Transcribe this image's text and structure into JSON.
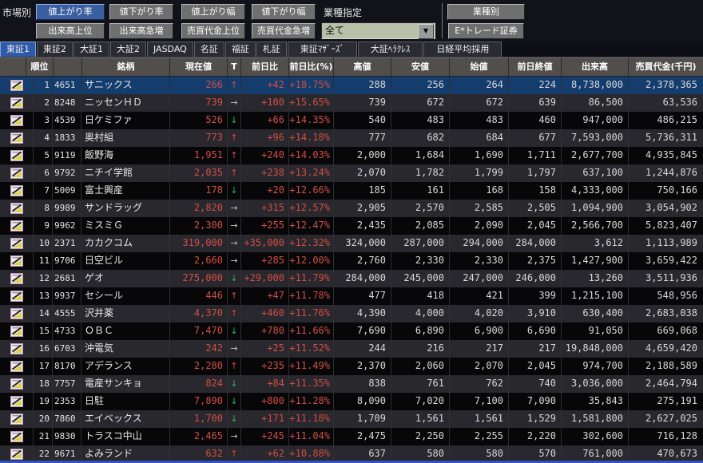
{
  "toolbar": {
    "market_label": "市場別",
    "rank_buttons": [
      "値上がり率",
      "値下がり率",
      "値上がり幅",
      "値下がり幅"
    ],
    "selected_rank_button": "値上がり率",
    "volume_buttons": [
      "出来高上位",
      "出来高急増",
      "売買代金上位",
      "売買代金急増"
    ],
    "industry_label": "業種指定",
    "industry_select_value": "全て",
    "industry_button": "業種別",
    "broker_button": "E*トレード証券",
    "dropdown_arrow_glyph": "▼"
  },
  "tabs": {
    "items": [
      "東証1",
      "東証2",
      "大証1",
      "大証2",
      "JASDAQ",
      "名証",
      "福証",
      "札証",
      "東証ﾏｻﾞｰｽﾞ",
      "大証ﾍﾗｸﾚｽ",
      "日経平均採用"
    ],
    "selected": "東証1"
  },
  "colors": {
    "selected_row": "#143d6d",
    "selected_button": "#3a5fa0",
    "price_red": "#d24e44",
    "arrow_up": "#e8423a",
    "arrow_down": "#2eb94e",
    "arrow_flat": "#c2c2c2",
    "bottom_border_blue": "#3353c4"
  },
  "table": {
    "headers": [
      "",
      "順位",
      "",
      "銘柄",
      "現在値",
      "T",
      "前日比",
      "前日比(%)",
      "高値",
      "安値",
      "始値",
      "前日終値",
      "出来高",
      "売買代金(千円)"
    ],
    "trend_glyphs": {
      "up": "↑",
      "down": "↓",
      "flat": "→"
    },
    "rows": [
      {
        "rank": 1,
        "code": "4651",
        "name": "サニックス",
        "price": "266",
        "trend": "up",
        "change": "+42",
        "pct": "+18.75%",
        "high": "288",
        "low": "256",
        "open": "264",
        "prev_close": "224",
        "volume": "8,738,000",
        "value": "2,378,365",
        "selected": true
      },
      {
        "rank": 2,
        "code": "8248",
        "name": "ニッセンＨＤ",
        "price": "739",
        "trend": "flat",
        "change": "+100",
        "pct": "+15.65%",
        "high": "739",
        "low": "672",
        "open": "672",
        "prev_close": "639",
        "volume": "86,500",
        "value": "63,536"
      },
      {
        "rank": 3,
        "code": "4539",
        "name": "日ケミファ",
        "price": "526",
        "trend": "down",
        "change": "+66",
        "pct": "+14.35%",
        "high": "540",
        "low": "483",
        "open": "483",
        "prev_close": "460",
        "volume": "947,000",
        "value": "486,215"
      },
      {
        "rank": 4,
        "code": "1833",
        "name": "奥村組",
        "price": "773",
        "trend": "up",
        "change": "+96",
        "pct": "+14.18%",
        "high": "777",
        "low": "682",
        "open": "684",
        "prev_close": "677",
        "volume": "7,593,000",
        "value": "5,736,311"
      },
      {
        "rank": 5,
        "code": "9119",
        "name": "飯野海",
        "price": "1,951",
        "trend": "up",
        "change": "+240",
        "pct": "+14.03%",
        "high": "2,000",
        "low": "1,684",
        "open": "1,690",
        "prev_close": "1,711",
        "volume": "2,677,700",
        "value": "4,935,845"
      },
      {
        "rank": 6,
        "code": "9792",
        "name": "ニチイ学館",
        "price": "2,035",
        "trend": "up",
        "change": "+238",
        "pct": "+13.24%",
        "high": "2,070",
        "low": "1,782",
        "open": "1,799",
        "prev_close": "1,797",
        "volume": "637,100",
        "value": "1,244,876"
      },
      {
        "rank": 7,
        "code": "5009",
        "name": "富士興産",
        "price": "178",
        "trend": "down",
        "change": "+20",
        "pct": "+12.66%",
        "high": "185",
        "low": "161",
        "open": "168",
        "prev_close": "158",
        "volume": "4,333,000",
        "value": "750,166"
      },
      {
        "rank": 8,
        "code": "9989",
        "name": "サンドラッグ",
        "price": "2,820",
        "trend": "flat",
        "change": "+315",
        "pct": "+12.57%",
        "high": "2,905",
        "low": "2,570",
        "open": "2,585",
        "prev_close": "2,505",
        "volume": "1,094,900",
        "value": "3,054,902"
      },
      {
        "rank": 9,
        "code": "9962",
        "name": "ミスミＧ",
        "price": "2,300",
        "trend": "flat",
        "change": "+255",
        "pct": "+12.47%",
        "high": "2,435",
        "low": "2,085",
        "open": "2,090",
        "prev_close": "2,045",
        "volume": "2,566,700",
        "value": "5,823,407"
      },
      {
        "rank": 10,
        "code": "2371",
        "name": "カカクコム",
        "price": "319,000",
        "trend": "flat",
        "change": "+35,000",
        "pct": "+12.32%",
        "high": "324,000",
        "low": "287,000",
        "open": "294,000",
        "prev_close": "284,000",
        "volume": "3,612",
        "value": "1,113,989"
      },
      {
        "rank": 11,
        "code": "9706",
        "name": "日空ビル",
        "price": "2,660",
        "trend": "flat",
        "change": "+285",
        "pct": "+12.00%",
        "high": "2,760",
        "low": "2,330",
        "open": "2,330",
        "prev_close": "2,375",
        "volume": "1,427,900",
        "value": "3,659,422"
      },
      {
        "rank": 12,
        "code": "2681",
        "name": "ゲオ",
        "price": "275,000",
        "trend": "down",
        "change": "+29,000",
        "pct": "+11.79%",
        "high": "284,000",
        "low": "245,000",
        "open": "247,000",
        "prev_close": "246,000",
        "volume": "13,260",
        "value": "3,511,936"
      },
      {
        "rank": 13,
        "code": "9937",
        "name": "セシール",
        "price": "446",
        "trend": "up",
        "change": "+47",
        "pct": "+11.78%",
        "high": "477",
        "low": "418",
        "open": "421",
        "prev_close": "399",
        "volume": "1,215,100",
        "value": "548,956"
      },
      {
        "rank": 14,
        "code": "4555",
        "name": "沢井薬",
        "price": "4,370",
        "trend": "up",
        "change": "+460",
        "pct": "+11.76%",
        "high": "4,390",
        "low": "4,000",
        "open": "4,020",
        "prev_close": "3,910",
        "volume": "630,400",
        "value": "2,683,038"
      },
      {
        "rank": 15,
        "code": "4733",
        "name": "ＯＢＣ",
        "price": "7,470",
        "trend": "down",
        "change": "+780",
        "pct": "+11.66%",
        "high": "7,690",
        "low": "6,890",
        "open": "6,900",
        "prev_close": "6,690",
        "volume": "91,050",
        "value": "669,068"
      },
      {
        "rank": 16,
        "code": "6703",
        "name": "沖電気",
        "price": "242",
        "trend": "flat",
        "change": "+25",
        "pct": "+11.52%",
        "high": "244",
        "low": "216",
        "open": "217",
        "prev_close": "217",
        "volume": "19,848,000",
        "value": "4,659,420"
      },
      {
        "rank": 17,
        "code": "8170",
        "name": "アデランス",
        "price": "2,280",
        "trend": "up",
        "change": "+235",
        "pct": "+11.49%",
        "high": "2,370",
        "low": "2,060",
        "open": "2,070",
        "prev_close": "2,045",
        "volume": "974,700",
        "value": "2,188,589"
      },
      {
        "rank": 18,
        "code": "7757",
        "name": "電産サンキョ",
        "price": "824",
        "trend": "down",
        "change": "+84",
        "pct": "+11.35%",
        "high": "838",
        "low": "761",
        "open": "762",
        "prev_close": "740",
        "volume": "3,036,000",
        "value": "2,464,794"
      },
      {
        "rank": 19,
        "code": "2353",
        "name": "日駐",
        "price": "7,890",
        "trend": "down",
        "change": "+800",
        "pct": "+11.28%",
        "high": "8,090",
        "low": "7,020",
        "open": "7,100",
        "prev_close": "7,090",
        "volume": "35,843",
        "value": "275,191"
      },
      {
        "rank": 20,
        "code": "7860",
        "name": "エイベックス",
        "price": "1,700",
        "trend": "down",
        "change": "+171",
        "pct": "+11.18%",
        "high": "1,709",
        "low": "1,561",
        "open": "1,561",
        "prev_close": "1,529",
        "volume": "1,581,800",
        "value": "2,627,025"
      },
      {
        "rank": 21,
        "code": "9830",
        "name": "トラスコ中山",
        "price": "2,465",
        "trend": "flat",
        "change": "+245",
        "pct": "+11.04%",
        "high": "2,475",
        "low": "2,250",
        "open": "2,255",
        "prev_close": "2,220",
        "volume": "302,600",
        "value": "716,128"
      },
      {
        "rank": 22,
        "code": "9671",
        "name": "よみランド",
        "price": "632",
        "trend": "up",
        "change": "+62",
        "pct": "+10.88%",
        "high": "637",
        "low": "580",
        "open": "580",
        "prev_close": "570",
        "volume": "761,000",
        "value": "470,673"
      }
    ]
  }
}
